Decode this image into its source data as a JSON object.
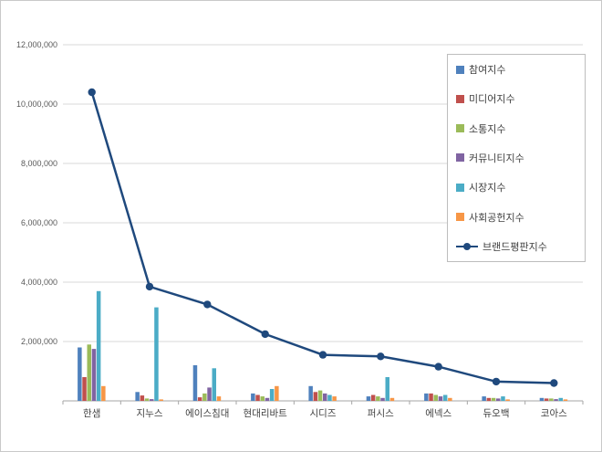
{
  "page": {
    "background": "#ffffff",
    "border_color": "#c9c9c9"
  },
  "chart_data": {
    "type": "bar",
    "overlay": "line",
    "grid": true,
    "legend_position": "right-overlay",
    "ylim": [
      0,
      12000000
    ],
    "ytick_step": 2000000,
    "ytick_labels": [
      "2,000,000",
      "4,000,000",
      "6,000,000",
      "8,000,000",
      "10,000,000",
      "12,000,000"
    ],
    "categories": [
      "한샘",
      "지누스",
      "에이스침대",
      "현대리바트",
      "시디즈",
      "퍼시스",
      "에넥스",
      "듀오백",
      "코아스"
    ],
    "bar_series": [
      {
        "name": "참여지수",
        "color": "#4F81BD",
        "values": [
          1800000,
          300000,
          1200000,
          250000,
          500000,
          150000,
          250000,
          150000,
          100000
        ]
      },
      {
        "name": "미디어지수",
        "color": "#C0504D",
        "values": [
          800000,
          180000,
          120000,
          200000,
          300000,
          200000,
          250000,
          100000,
          80000
        ]
      },
      {
        "name": "소통지수",
        "color": "#9BBB59",
        "values": [
          1900000,
          80000,
          250000,
          150000,
          350000,
          150000,
          200000,
          100000,
          80000
        ]
      },
      {
        "name": "커뮤니티지수",
        "color": "#8064A2",
        "values": [
          1750000,
          60000,
          450000,
          100000,
          250000,
          100000,
          150000,
          80000,
          60000
        ]
      },
      {
        "name": "시장지수",
        "color": "#4BACC6",
        "values": [
          3700000,
          3150000,
          1100000,
          400000,
          200000,
          800000,
          200000,
          150000,
          100000
        ]
      },
      {
        "name": "사회공헌지수",
        "color": "#F79646",
        "values": [
          500000,
          50000,
          150000,
          500000,
          150000,
          100000,
          100000,
          50000,
          50000
        ]
      }
    ],
    "line_series": {
      "name": "브랜드평판지수",
      "color": "#1F497D",
      "values": [
        10400000,
        3850000,
        3250000,
        2250000,
        1550000,
        1500000,
        1150000,
        650000,
        600000
      ]
    },
    "axis_colors": {
      "gridline": "#d9d9d9",
      "axis_line": "#a6a6a6",
      "tick_label": "#595959",
      "category_label": "#404040"
    }
  }
}
